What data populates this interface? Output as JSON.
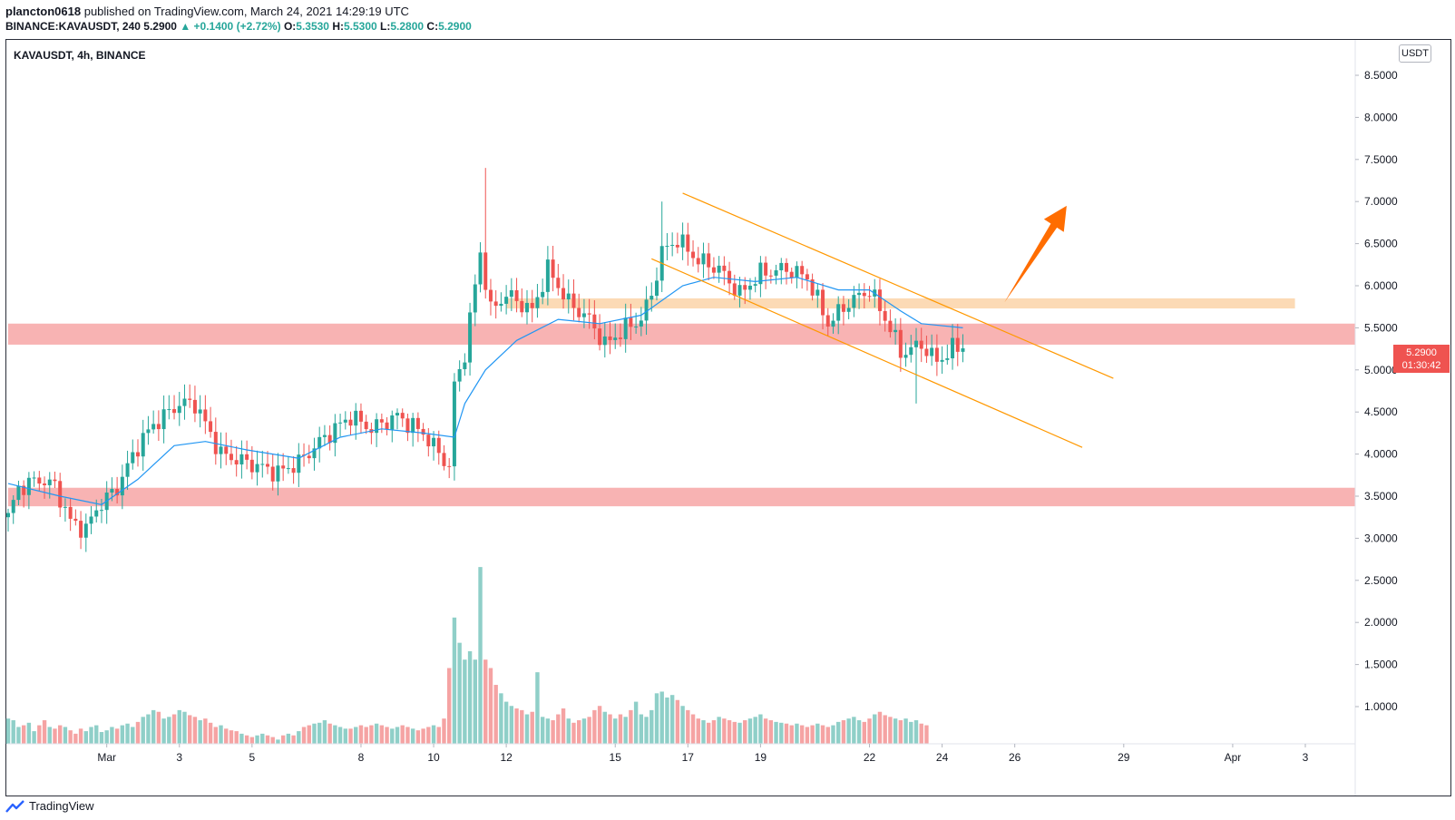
{
  "header": {
    "publisher_name": "plancton0618",
    "published_text": "published on TradingView.com, March 24, 2021 14:29:19 UTC",
    "symbol_line": "BINANCE:KAVAUSDT, 240",
    "last_price": "5.2900",
    "change_text": "▲ +0.1400 (+2.72%)",
    "o_label": "O:",
    "o_value": "5.3530",
    "h_label": "H:",
    "h_value": "5.5300",
    "l_label": "L:",
    "l_value": "5.2800",
    "c_label": "C:",
    "c_value": "5.2900"
  },
  "chart_legend": "KAVAUSDT, 4h, BINANCE",
  "currency_unit": "USDT",
  "price_tag": {
    "price": "5.2900",
    "countdown": "01:30:42"
  },
  "footer": {
    "brand": "TradingView"
  },
  "colors": {
    "up": "#26a69a",
    "down": "#ef5350",
    "ma_line": "#2196f3",
    "zone_red": "#f7a6a6",
    "zone_orange": "#fbd3a8",
    "channel": "#ff9800",
    "arrow": "#ff6d00",
    "vol_up": "#8fcfc8",
    "vol_down": "#f5a3a3"
  },
  "chart_data": {
    "type": "candlestick",
    "symbol": "KAVAUSDT",
    "timeframe": "4h",
    "exchange": "BINANCE",
    "x_ticks": [
      "Mar",
      "3",
      "5",
      "8",
      "10",
      "12",
      "15",
      "17",
      "19",
      "22",
      "24",
      "26",
      "29",
      "Apr",
      "3"
    ],
    "y_ticks": [
      "8.5000",
      "8.0000",
      "7.5000",
      "7.0000",
      "6.5000",
      "6.0000",
      "5.5000",
      "5.0000",
      "4.5000",
      "4.0000",
      "3.5000",
      "3.0000",
      "2.5000",
      "2.0000",
      "1.5000",
      "1.0000"
    ],
    "ylim": [
      0.5,
      8.7
    ],
    "close_path": [
      {
        "t": 0,
        "c": 3.25
      },
      {
        "t": 2,
        "c": 3.6
      },
      {
        "t": 6,
        "c": 3.7
      },
      {
        "t": 9,
        "c": 3.62
      },
      {
        "t": 12,
        "c": 3.2
      },
      {
        "t": 15,
        "c": 3.1
      },
      {
        "t": 17,
        "c": 3.35
      },
      {
        "t": 21,
        "c": 3.6
      },
      {
        "t": 25,
        "c": 4.1
      },
      {
        "t": 28,
        "c": 4.35
      },
      {
        "t": 33,
        "c": 4.6
      },
      {
        "t": 36,
        "c": 4.6
      },
      {
        "t": 41,
        "c": 4.0
      },
      {
        "t": 46,
        "c": 3.9
      },
      {
        "t": 52,
        "c": 3.78
      },
      {
        "t": 56,
        "c": 3.9
      },
      {
        "t": 61,
        "c": 4.2
      },
      {
        "t": 66,
        "c": 4.45
      },
      {
        "t": 70,
        "c": 4.3
      },
      {
        "t": 75,
        "c": 4.45
      },
      {
        "t": 80,
        "c": 4.25
      },
      {
        "t": 85,
        "c": 3.85
      },
      {
        "t": 86,
        "c": 4.8
      },
      {
        "t": 88,
        "c": 5.2
      },
      {
        "t": 91,
        "c": 6.4
      },
      {
        "t": 93,
        "c": 5.7
      },
      {
        "t": 96,
        "c": 5.9
      },
      {
        "t": 101,
        "c": 5.7
      },
      {
        "t": 104,
        "c": 6.2
      },
      {
        "t": 108,
        "c": 5.8
      },
      {
        "t": 112,
        "c": 5.6
      },
      {
        "t": 115,
        "c": 5.3
      },
      {
        "t": 119,
        "c": 5.5
      },
      {
        "t": 122,
        "c": 5.6
      },
      {
        "t": 124,
        "c": 5.9
      },
      {
        "t": 126,
        "c": 6.4
      },
      {
        "t": 129,
        "c": 6.55
      },
      {
        "t": 133,
        "c": 6.3
      },
      {
        "t": 137,
        "c": 6.2
      },
      {
        "t": 141,
        "c": 5.9
      },
      {
        "t": 145,
        "c": 6.15
      },
      {
        "t": 150,
        "c": 6.2
      },
      {
        "t": 154,
        "c": 6.1
      },
      {
        "t": 158,
        "c": 5.55
      },
      {
        "t": 162,
        "c": 5.8
      },
      {
        "t": 166,
        "c": 5.95
      },
      {
        "t": 170,
        "c": 5.5
      },
      {
        "t": 172,
        "c": 5.2
      },
      {
        "t": 176,
        "c": 5.3
      },
      {
        "t": 179,
        "c": 5.1
      },
      {
        "t": 182,
        "c": 5.25
      },
      {
        "t": 184,
        "c": 5.29
      }
    ],
    "notable_wicks": [
      {
        "t": 92,
        "h": 7.4
      },
      {
        "t": 126,
        "h": 7.0
      },
      {
        "t": 175,
        "l": 4.6
      }
    ],
    "moving_average": [
      {
        "t": 0,
        "v": 3.65
      },
      {
        "t": 10,
        "v": 3.5
      },
      {
        "t": 18,
        "v": 3.4
      },
      {
        "t": 25,
        "v": 3.7
      },
      {
        "t": 32,
        "v": 4.1
      },
      {
        "t": 38,
        "v": 4.15
      },
      {
        "t": 46,
        "v": 4.05
      },
      {
        "t": 56,
        "v": 3.95
      },
      {
        "t": 64,
        "v": 4.2
      },
      {
        "t": 72,
        "v": 4.3
      },
      {
        "t": 80,
        "v": 4.25
      },
      {
        "t": 86,
        "v": 4.2
      },
      {
        "t": 88,
        "v": 4.6
      },
      {
        "t": 92,
        "v": 5.0
      },
      {
        "t": 98,
        "v": 5.35
      },
      {
        "t": 106,
        "v": 5.6
      },
      {
        "t": 114,
        "v": 5.55
      },
      {
        "t": 122,
        "v": 5.65
      },
      {
        "t": 130,
        "v": 6.0
      },
      {
        "t": 136,
        "v": 6.1
      },
      {
        "t": 144,
        "v": 6.05
      },
      {
        "t": 152,
        "v": 6.1
      },
      {
        "t": 160,
        "v": 5.95
      },
      {
        "t": 166,
        "v": 5.95
      },
      {
        "t": 172,
        "v": 5.7
      },
      {
        "t": 176,
        "v": 5.55
      },
      {
        "t": 184,
        "v": 5.5
      }
    ],
    "zones": [
      {
        "color": "red",
        "from": 5.3,
        "to": 5.55,
        "t_start": 0,
        "t_end": 260
      },
      {
        "color": "red",
        "from": 3.38,
        "to": 3.6,
        "t_start": 0,
        "t_end": 260
      },
      {
        "color": "orange",
        "from": 5.73,
        "to": 5.85,
        "t_start": 96,
        "t_end": 248
      }
    ],
    "channel_lines": [
      {
        "t1": 130,
        "p1": 7.1,
        "t2": 213,
        "p2": 4.9
      },
      {
        "t1": 124,
        "p1": 6.32,
        "t2": 207,
        "p2": 4.08
      }
    ],
    "arrow": {
      "t1": 192,
      "p1": 5.8,
      "t2": 204,
      "p2": 6.95
    },
    "volume": [
      0.8,
      0.78,
      0.7,
      0.72,
      0.75,
      0.65,
      0.72,
      0.78,
      0.7,
      0.68,
      0.72,
      0.7,
      0.66,
      0.62,
      0.68,
      0.65,
      0.7,
      0.72,
      0.64,
      0.66,
      0.7,
      0.68,
      0.72,
      0.74,
      0.7,
      0.76,
      0.82,
      0.85,
      0.9,
      0.88,
      0.8,
      0.82,
      0.85,
      0.9,
      0.88,
      0.84,
      0.82,
      0.78,
      0.8,
      0.75,
      0.7,
      0.72,
      0.68,
      0.66,
      0.65,
      0.62,
      0.6,
      0.58,
      0.6,
      0.62,
      0.6,
      0.58,
      0.55,
      0.6,
      0.62,
      0.6,
      0.65,
      0.7,
      0.72,
      0.74,
      0.75,
      0.78,
      0.74,
      0.72,
      0.7,
      0.68,
      0.68,
      0.7,
      0.72,
      0.7,
      0.72,
      0.74,
      0.72,
      0.7,
      0.68,
      0.7,
      0.72,
      0.7,
      0.68,
      0.66,
      0.68,
      0.7,
      0.72,
      0.7,
      0.8,
      1.4,
      2.0,
      1.7,
      1.5,
      1.6,
      1.5,
      2.6,
      1.5,
      1.4,
      1.2,
      1.1,
      1.0,
      0.95,
      0.92,
      0.9,
      0.85,
      0.88,
      1.35,
      0.82,
      0.8,
      0.78,
      0.85,
      0.92,
      0.8,
      0.75,
      0.78,
      0.8,
      0.82,
      0.9,
      0.95,
      0.88,
      0.85,
      0.8,
      0.85,
      0.82,
      0.9,
      1.0,
      0.85,
      0.82,
      0.9,
      1.1,
      1.12,
      1.05,
      1.08,
      1.02,
      0.95,
      0.9,
      0.85,
      0.8,
      0.78,
      0.75,
      0.78,
      0.82,
      0.8,
      0.78,
      0.76,
      0.75,
      0.78,
      0.8,
      0.82,
      0.85,
      0.8,
      0.78,
      0.76,
      0.75,
      0.74,
      0.72,
      0.74,
      0.72,
      0.7,
      0.72,
      0.74,
      0.72,
      0.7,
      0.72,
      0.76,
      0.78,
      0.8,
      0.82,
      0.78,
      0.76,
      0.8,
      0.85,
      0.88,
      0.84,
      0.82,
      0.8,
      0.78,
      0.8,
      0.76,
      0.78,
      0.74,
      0.72
    ]
  }
}
